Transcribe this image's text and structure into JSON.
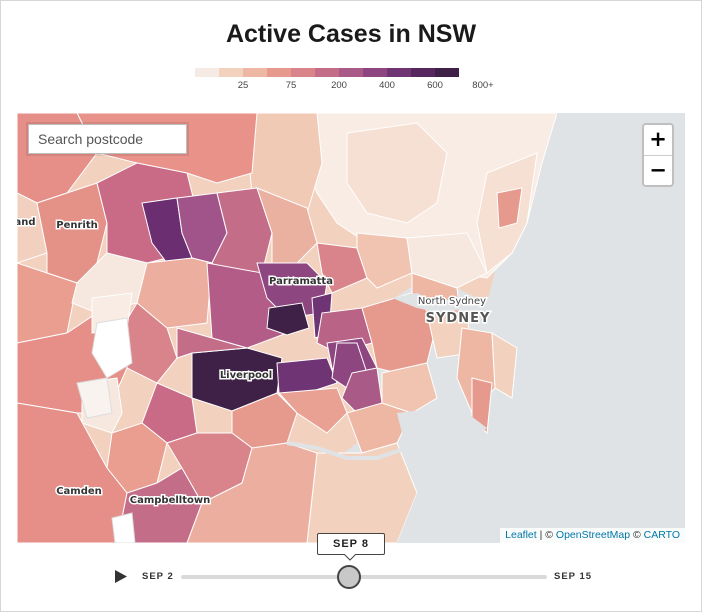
{
  "title": "Active Cases in NSW",
  "legend": {
    "colors": [
      "#f6ebe4",
      "#f3d1bf",
      "#eeb7a4",
      "#e69a8d",
      "#d9838a",
      "#c46d89",
      "#aa5a86",
      "#8e4680",
      "#6f3473",
      "#56275f",
      "#3f2147"
    ],
    "labels": [
      "25",
      "75",
      "200",
      "400",
      "600",
      "800+"
    ]
  },
  "search": {
    "placeholder": "Search postcode"
  },
  "zoom": {
    "in_label": "+",
    "out_label": "−"
  },
  "attribution": {
    "leaflet": "Leaflet",
    "sep1": " | © ",
    "osm": "OpenStreetMap",
    "sep2": " © ",
    "carto": "CARTO"
  },
  "places": {
    "penrith": "Penrith",
    "parramatta": "Parramatta",
    "north_sydney": "North Sydney",
    "sydney": "SYDNEY",
    "liverpool": "Liverpool",
    "camden": "Camden",
    "campbelltown": "Campbelltown",
    "edge": "and"
  },
  "timeline": {
    "current_date": "SEP 8",
    "start_label": "SEP 2",
    "end_label": "SEP 15",
    "progress": 0.46
  },
  "colors": {
    "sea": "#dfe3e5",
    "border": "#ffffff"
  }
}
